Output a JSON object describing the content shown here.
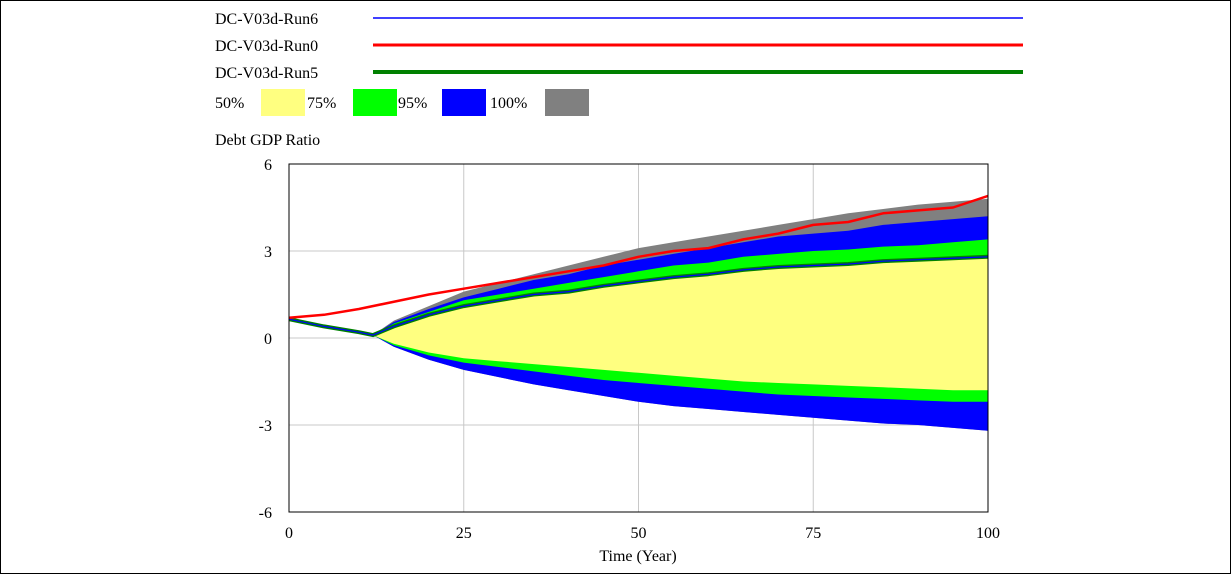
{
  "chart_data": {
    "type": "area",
    "ylabel": "Debt GDP Ratio",
    "xlabel": "Time (Year)",
    "xlim": [
      0,
      100
    ],
    "ylim": [
      -6,
      6
    ],
    "x_ticks": [
      0,
      25,
      50,
      75,
      100
    ],
    "y_ticks": [
      6,
      3,
      0,
      -3,
      -6
    ],
    "grid": true,
    "legend_position": "top",
    "series": [
      {
        "name": "DC-V03d-Run6",
        "color": "#0000FF",
        "x": [
          0,
          100
        ],
        "values": [
          0.6,
          2.8
        ]
      },
      {
        "name": "DC-V03d-Run0",
        "color": "#FF0000",
        "x": [
          0,
          5,
          10,
          15,
          20,
          25,
          30,
          35,
          40,
          45,
          50,
          55,
          60,
          65,
          70,
          75,
          80,
          85,
          90,
          95,
          100
        ],
        "values": [
          0.7,
          0.8,
          1.0,
          1.25,
          1.5,
          1.7,
          1.9,
          2.1,
          2.3,
          2.5,
          2.8,
          3.0,
          3.1,
          3.4,
          3.6,
          3.9,
          4.0,
          4.3,
          4.4,
          4.5,
          4.9
        ]
      },
      {
        "name": "DC-V03d-Run5",
        "color": "#008000",
        "x": [
          0,
          5,
          10,
          12,
          15,
          20,
          25,
          30,
          35,
          40,
          45,
          50,
          55,
          60,
          65,
          70,
          75,
          80,
          85,
          90,
          95,
          100
        ],
        "values": [
          0.65,
          0.4,
          0.2,
          0.1,
          0.4,
          0.8,
          1.1,
          1.3,
          1.5,
          1.6,
          1.8,
          1.95,
          2.1,
          2.2,
          2.35,
          2.45,
          2.5,
          2.55,
          2.65,
          2.7,
          2.75,
          2.8
        ]
      }
    ],
    "bands": {
      "labels": [
        "50%",
        "75%",
        "95%",
        "100%"
      ],
      "colors": [
        "#FFFF80",
        "#00FF00",
        "#0000FF",
        "#808080"
      ],
      "x": [
        0,
        5,
        10,
        12,
        15,
        20,
        25,
        30,
        35,
        40,
        45,
        50,
        55,
        60,
        65,
        70,
        75,
        80,
        85,
        90,
        95,
        100
      ],
      "p50_upper": [
        0.65,
        0.4,
        0.2,
        0.1,
        0.4,
        0.8,
        1.1,
        1.3,
        1.5,
        1.6,
        1.8,
        1.95,
        2.1,
        2.2,
        2.35,
        2.45,
        2.5,
        2.55,
        2.65,
        2.7,
        2.75,
        2.8
      ],
      "p50_lower": [
        0.65,
        0.4,
        0.2,
        0.1,
        -0.2,
        -0.5,
        -0.7,
        -0.8,
        -0.9,
        -1.0,
        -1.1,
        -1.2,
        -1.3,
        -1.4,
        -1.5,
        -1.55,
        -1.6,
        -1.65,
        -1.7,
        -1.75,
        -1.8,
        -1.8
      ],
      "p75_upper": [
        0.65,
        0.4,
        0.2,
        0.1,
        0.5,
        0.9,
        1.3,
        1.5,
        1.7,
        1.9,
        2.1,
        2.3,
        2.5,
        2.6,
        2.8,
        2.9,
        3.0,
        3.05,
        3.15,
        3.2,
        3.3,
        3.4
      ],
      "p75_lower": [
        0.65,
        0.4,
        0.2,
        0.1,
        -0.25,
        -0.6,
        -0.85,
        -1.0,
        -1.15,
        -1.3,
        -1.45,
        -1.55,
        -1.65,
        -1.75,
        -1.85,
        -1.95,
        -2.0,
        -2.05,
        -2.1,
        -2.15,
        -2.2,
        -2.2
      ],
      "p95_upper": [
        0.65,
        0.4,
        0.2,
        0.1,
        0.55,
        1.0,
        1.4,
        1.7,
        2.0,
        2.2,
        2.5,
        2.7,
        2.9,
        3.1,
        3.3,
        3.5,
        3.6,
        3.7,
        3.9,
        4.0,
        4.1,
        4.2
      ],
      "p95_lower": [
        0.65,
        0.4,
        0.2,
        0.1,
        -0.3,
        -0.75,
        -1.1,
        -1.35,
        -1.6,
        -1.8,
        -2.0,
        -2.2,
        -2.35,
        -2.45,
        -2.55,
        -2.65,
        -2.75,
        -2.85,
        -2.95,
        -3.0,
        -3.1,
        -3.2
      ],
      "p100_upper": [
        0.65,
        0.4,
        0.2,
        0.1,
        0.6,
        1.1,
        1.6,
        1.9,
        2.2,
        2.5,
        2.8,
        3.1,
        3.3,
        3.5,
        3.7,
        3.9,
        4.1,
        4.3,
        4.45,
        4.6,
        4.7,
        4.8
      ],
      "p100_lower": [
        0.65,
        0.4,
        0.2,
        0.1,
        -0.3,
        -0.75,
        -1.1,
        -1.35,
        -1.6,
        -1.8,
        -2.0,
        -2.2,
        -2.35,
        -2.45,
        -2.55,
        -2.65,
        -2.75,
        -2.85,
        -2.95,
        -3.0,
        -3.1,
        -3.2
      ]
    }
  }
}
